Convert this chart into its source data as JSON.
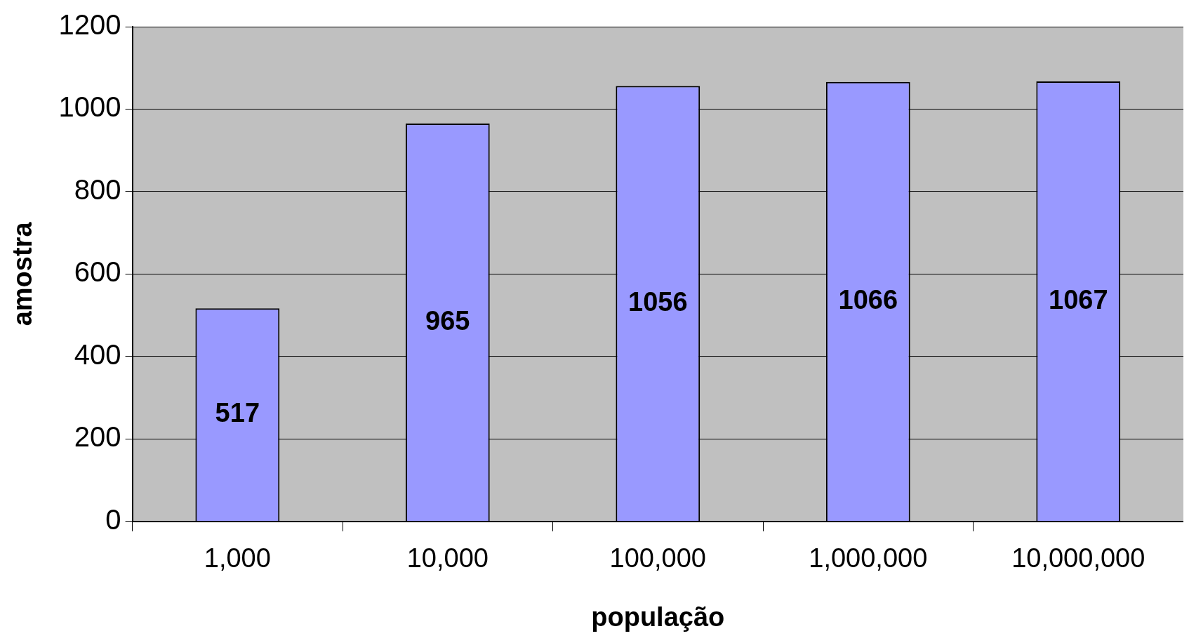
{
  "chart_data": {
    "type": "bar",
    "xlabel": "população",
    "ylabel": "amostra",
    "categories": [
      "1,000",
      "10,000",
      "100,000",
      "1,000,000",
      "10,000,000"
    ],
    "values": [
      517,
      965,
      1056,
      1066,
      1067
    ],
    "color": "#9999ff",
    "ylim": [
      0,
      1200
    ],
    "yticks": [
      0,
      200,
      400,
      600,
      800,
      1000,
      1200
    ],
    "grid": "y",
    "legend": false,
    "data_labels": true
  }
}
